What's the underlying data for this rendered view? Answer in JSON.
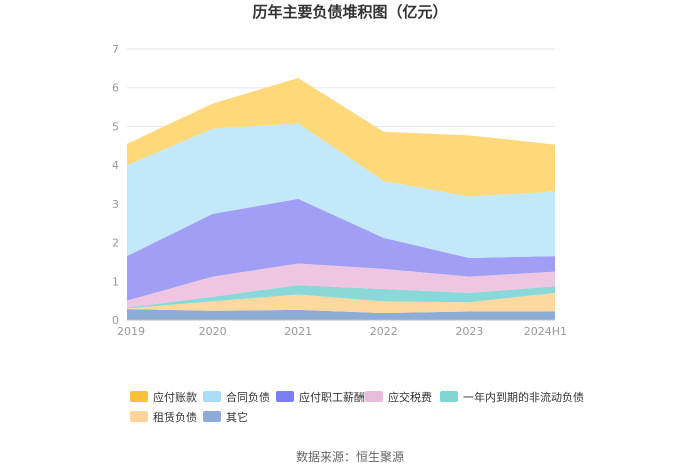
{
  "chart_data": {
    "type": "area",
    "stacked": true,
    "title": "历年主要负债堆积图（亿元）",
    "x": [
      "2019",
      "2020",
      "2021",
      "2022",
      "2023",
      "2024H1"
    ],
    "ylim": [
      0,
      7
    ],
    "yticks": [
      0,
      1,
      2,
      3,
      4,
      5,
      6,
      7
    ],
    "grid": true,
    "legend_position": "bottom",
    "series": [
      {
        "name": "其它",
        "color": "#8eacd8",
        "values": [
          0.28,
          0.24,
          0.26,
          0.18,
          0.22,
          0.22
        ]
      },
      {
        "name": "租赁负债",
        "color": "#fdd9a0",
        "values": [
          0.02,
          0.24,
          0.4,
          0.3,
          0.24,
          0.48
        ]
      },
      {
        "name": "一年内到期的非流动负债",
        "color": "#8ad8d8",
        "values": [
          0.02,
          0.12,
          0.24,
          0.32,
          0.24,
          0.17
        ]
      },
      {
        "name": "应交税费",
        "color": "#eec6e2",
        "values": [
          0.18,
          0.52,
          0.56,
          0.52,
          0.42,
          0.38
        ]
      },
      {
        "name": "应付职工薪酬",
        "color": "#a09ef5",
        "values": [
          1.15,
          1.62,
          1.67,
          0.8,
          0.48,
          0.4
        ]
      },
      {
        "name": "合同负债",
        "color": "#c2e8fa",
        "values": [
          2.35,
          2.2,
          1.95,
          1.47,
          1.59,
          1.67
        ]
      },
      {
        "name": "应付账款",
        "color": "#ffd87a",
        "values": [
          0.55,
          0.65,
          1.17,
          1.27,
          1.58,
          1.21
        ]
      }
    ],
    "legend": [
      {
        "name": "应付账款",
        "color": "#f9c13a"
      },
      {
        "name": "合同负债",
        "color": "#a9def8"
      },
      {
        "name": "应付职工薪酬",
        "color": "#7b7ef0"
      },
      {
        "name": "应交税费",
        "color": "#e8bcdc"
      },
      {
        "name": "一年内到期的非流动负债",
        "color": "#7fd6d3"
      },
      {
        "name": "租赁负债",
        "color": "#fdd49a"
      },
      {
        "name": "其它",
        "color": "#8eacd8"
      }
    ]
  },
  "source_text": "数据来源：恒生聚源"
}
